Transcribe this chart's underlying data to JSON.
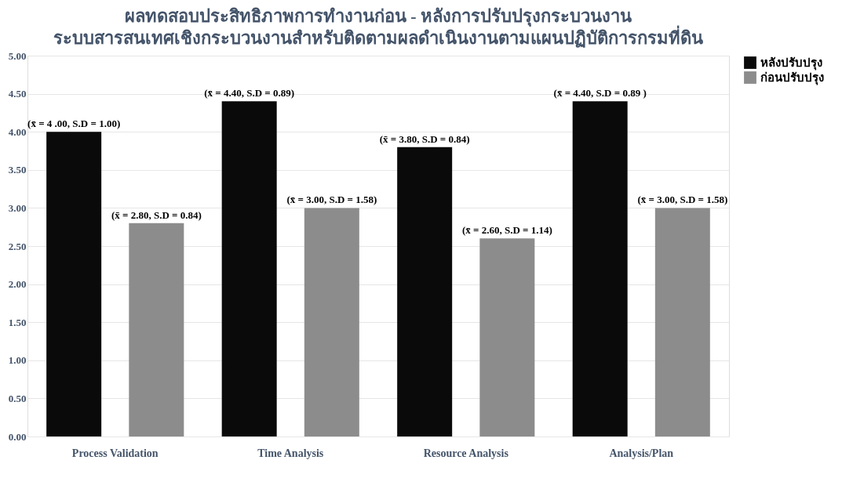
{
  "chart_data": {
    "type": "bar",
    "title": "ผลทดสอบประสิทธิภาพการทำงานก่อน - หลังการปรับปรุงกระบวนงาน",
    "subtitle": "ระบบสารสนเทศเชิงกระบวนงานสำหรับติดตามผลดำเนินงานตามแผนปฏิบัติการกรมที่ดิน",
    "categories": [
      "Process Validation",
      "Time Analysis",
      "Resource Analysis",
      "Analysis/Plan"
    ],
    "series": [
      {
        "name": "หลังปรับปรุง",
        "color": "#0a0a0a",
        "values": [
          4.0,
          4.4,
          3.8,
          4.4
        ],
        "value_labels": [
          "(x̄ = 4 .00, S.D = 1.00)",
          "(x̄ = 4.40, S.D = 0.89)",
          "(x̄ = 3.80, S.D = 0.84)",
          "(x̄ = 4.40, S.D = 0.89 )"
        ]
      },
      {
        "name": "ก่อนปรับปรุง",
        "color": "#8c8c8c",
        "values": [
          2.8,
          3.0,
          2.6,
          3.0
        ],
        "value_labels": [
          "(x̄ = 2.80, S.D = 0.84)",
          "(x̄ = 3.00, S.D = 1.58)",
          "(x̄ = 2.60, S.D = 1.14)",
          "(x̄ = 3.00, S.D = 1.58)"
        ]
      }
    ],
    "ylim": [
      0,
      5
    ],
    "yticks": [
      {
        "value": 0,
        "label": "0.00"
      },
      {
        "value": 0.5,
        "label": "0.50"
      },
      {
        "value": 1,
        "label": "1.00"
      },
      {
        "value": 1.5,
        "label": "1.50"
      },
      {
        "value": 2,
        "label": "2.00"
      },
      {
        "value": 2.5,
        "label": "2.50"
      },
      {
        "value": 3,
        "label": "3.00"
      },
      {
        "value": 3.5,
        "label": "3.50"
      },
      {
        "value": 4,
        "label": "4.00"
      },
      {
        "value": 4.5,
        "label": "4.50"
      },
      {
        "value": 5,
        "label": "5.00"
      }
    ],
    "grid": "y",
    "legend": "right"
  }
}
